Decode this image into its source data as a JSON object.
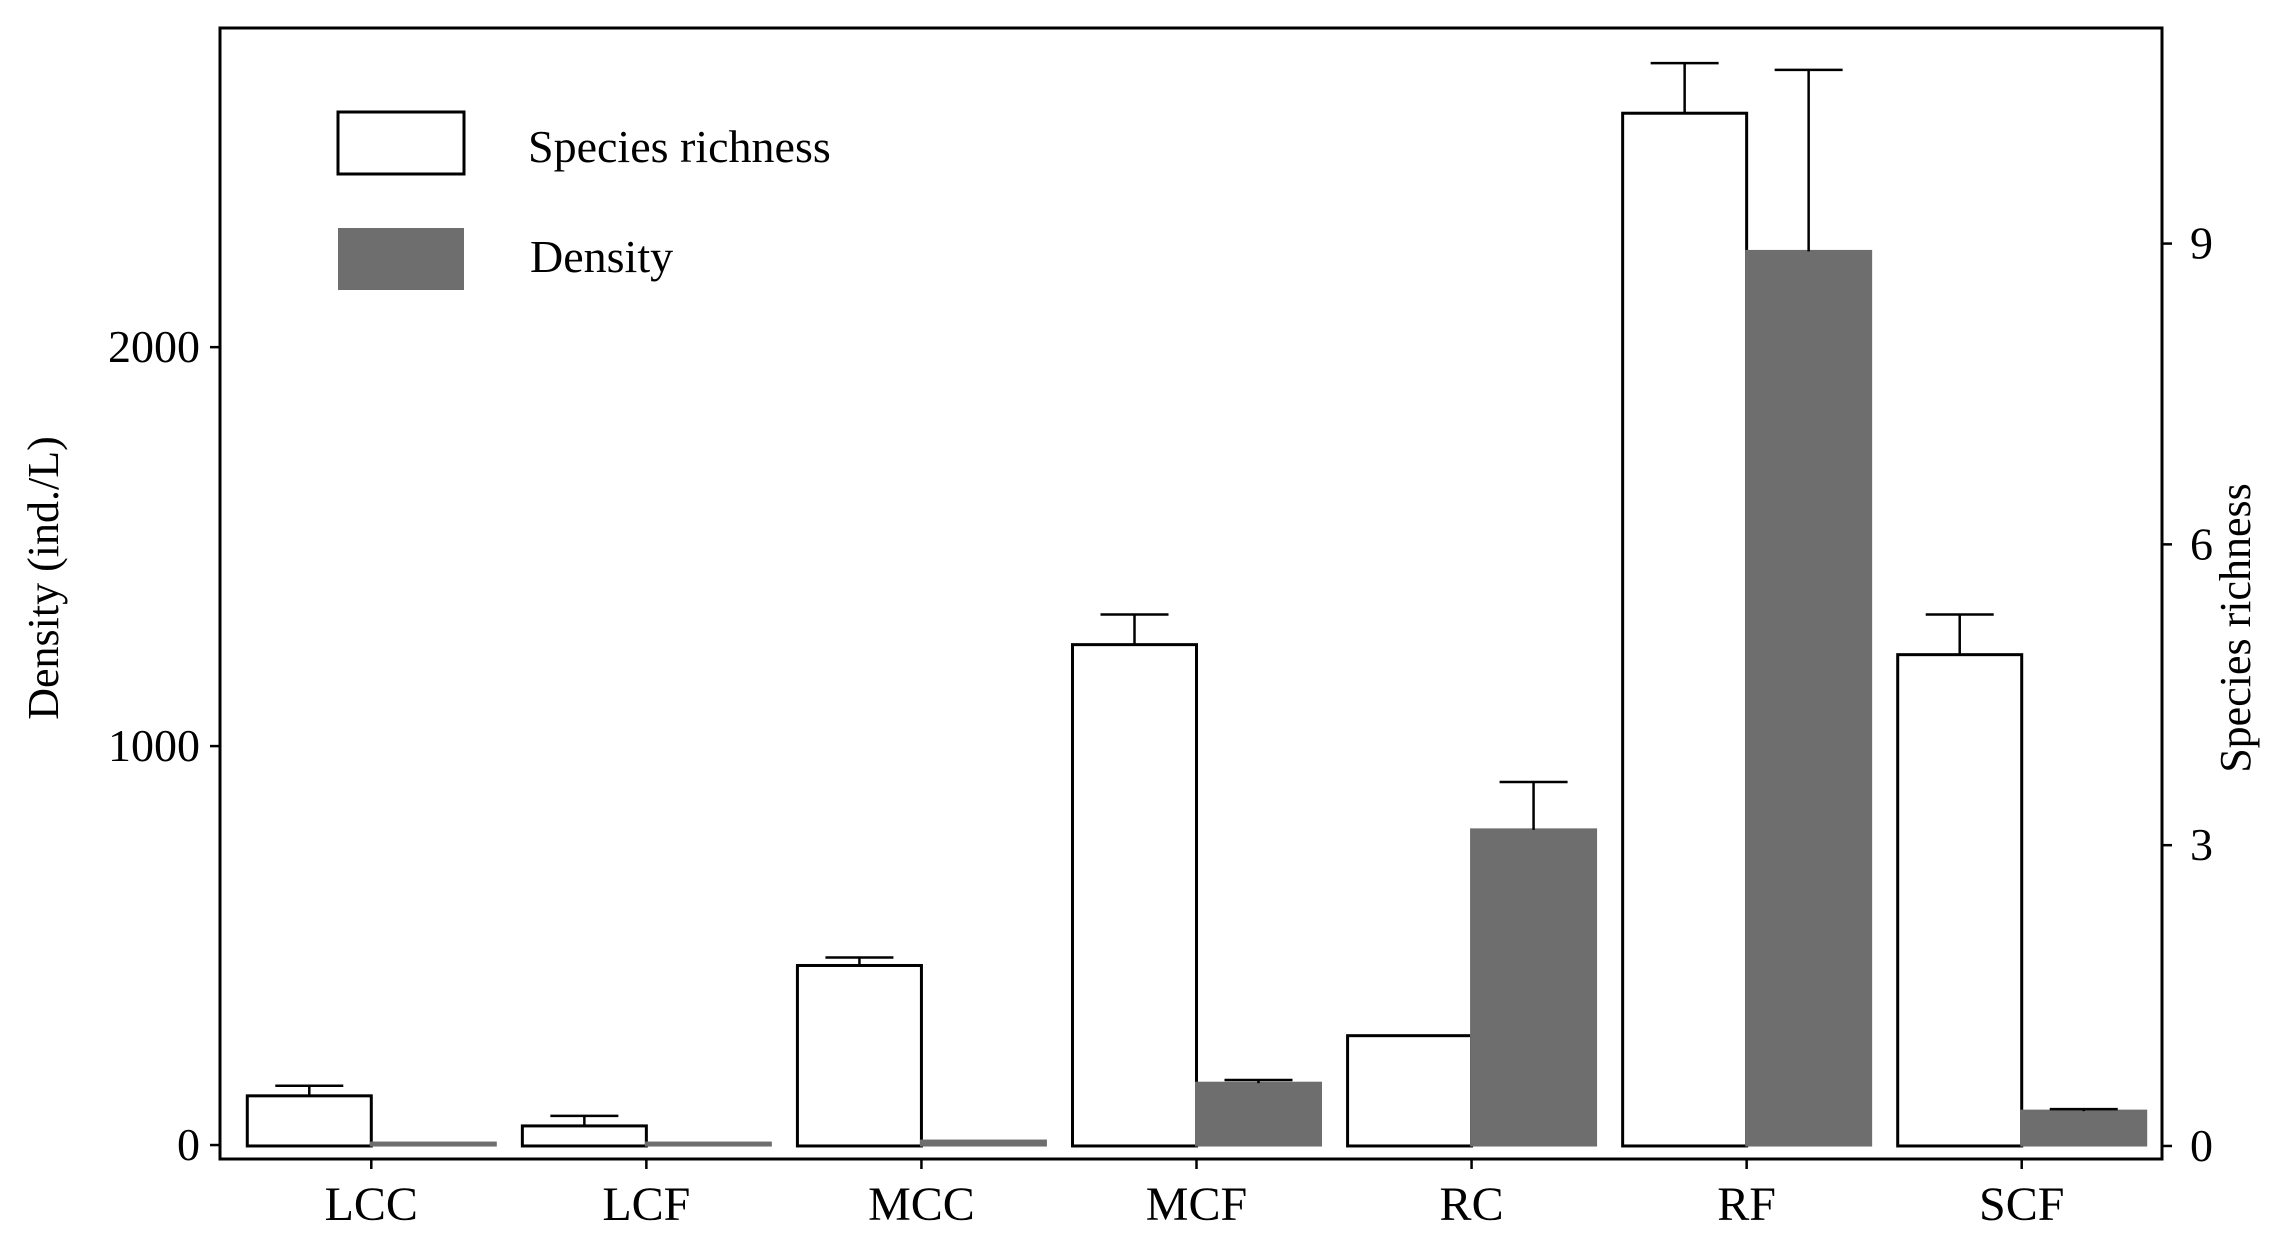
{
  "chart_data": {
    "type": "bar",
    "categories": [
      "LCC",
      "LCF",
      "MCC",
      "MCF",
      "RC",
      "RF",
      "SCF"
    ],
    "series": [
      {
        "name": "Species richness",
        "axis": "right",
        "fill": "#ffffff",
        "stroke": "#000000",
        "values": [
          0.5,
          0.2,
          1.8,
          5.0,
          1.1,
          10.3,
          4.9
        ],
        "errors": [
          0.1,
          0.1,
          0.08,
          0.3,
          0.0,
          0.5,
          0.4
        ]
      },
      {
        "name": "Density",
        "axis": "left",
        "fill": "#6e6e6e",
        "stroke": "#6e6e6e",
        "values": [
          5,
          5,
          10,
          155,
          790,
          2240,
          85
        ],
        "errors": [
          0,
          0,
          0,
          8,
          120,
          455,
          5
        ]
      }
    ],
    "ylabel": "Density (ind./L)",
    "y2label": "Species richness",
    "xlabel": "",
    "ylim": [
      -35,
      2800
    ],
    "y2lim": [
      -0.13,
      11.15
    ],
    "yticks": [
      0,
      1000,
      2000
    ],
    "y2ticks": [
      0,
      3,
      6,
      9
    ],
    "legend": {
      "position": "top-left",
      "entries": [
        "Species richness",
        "Density"
      ]
    },
    "grid": false
  }
}
